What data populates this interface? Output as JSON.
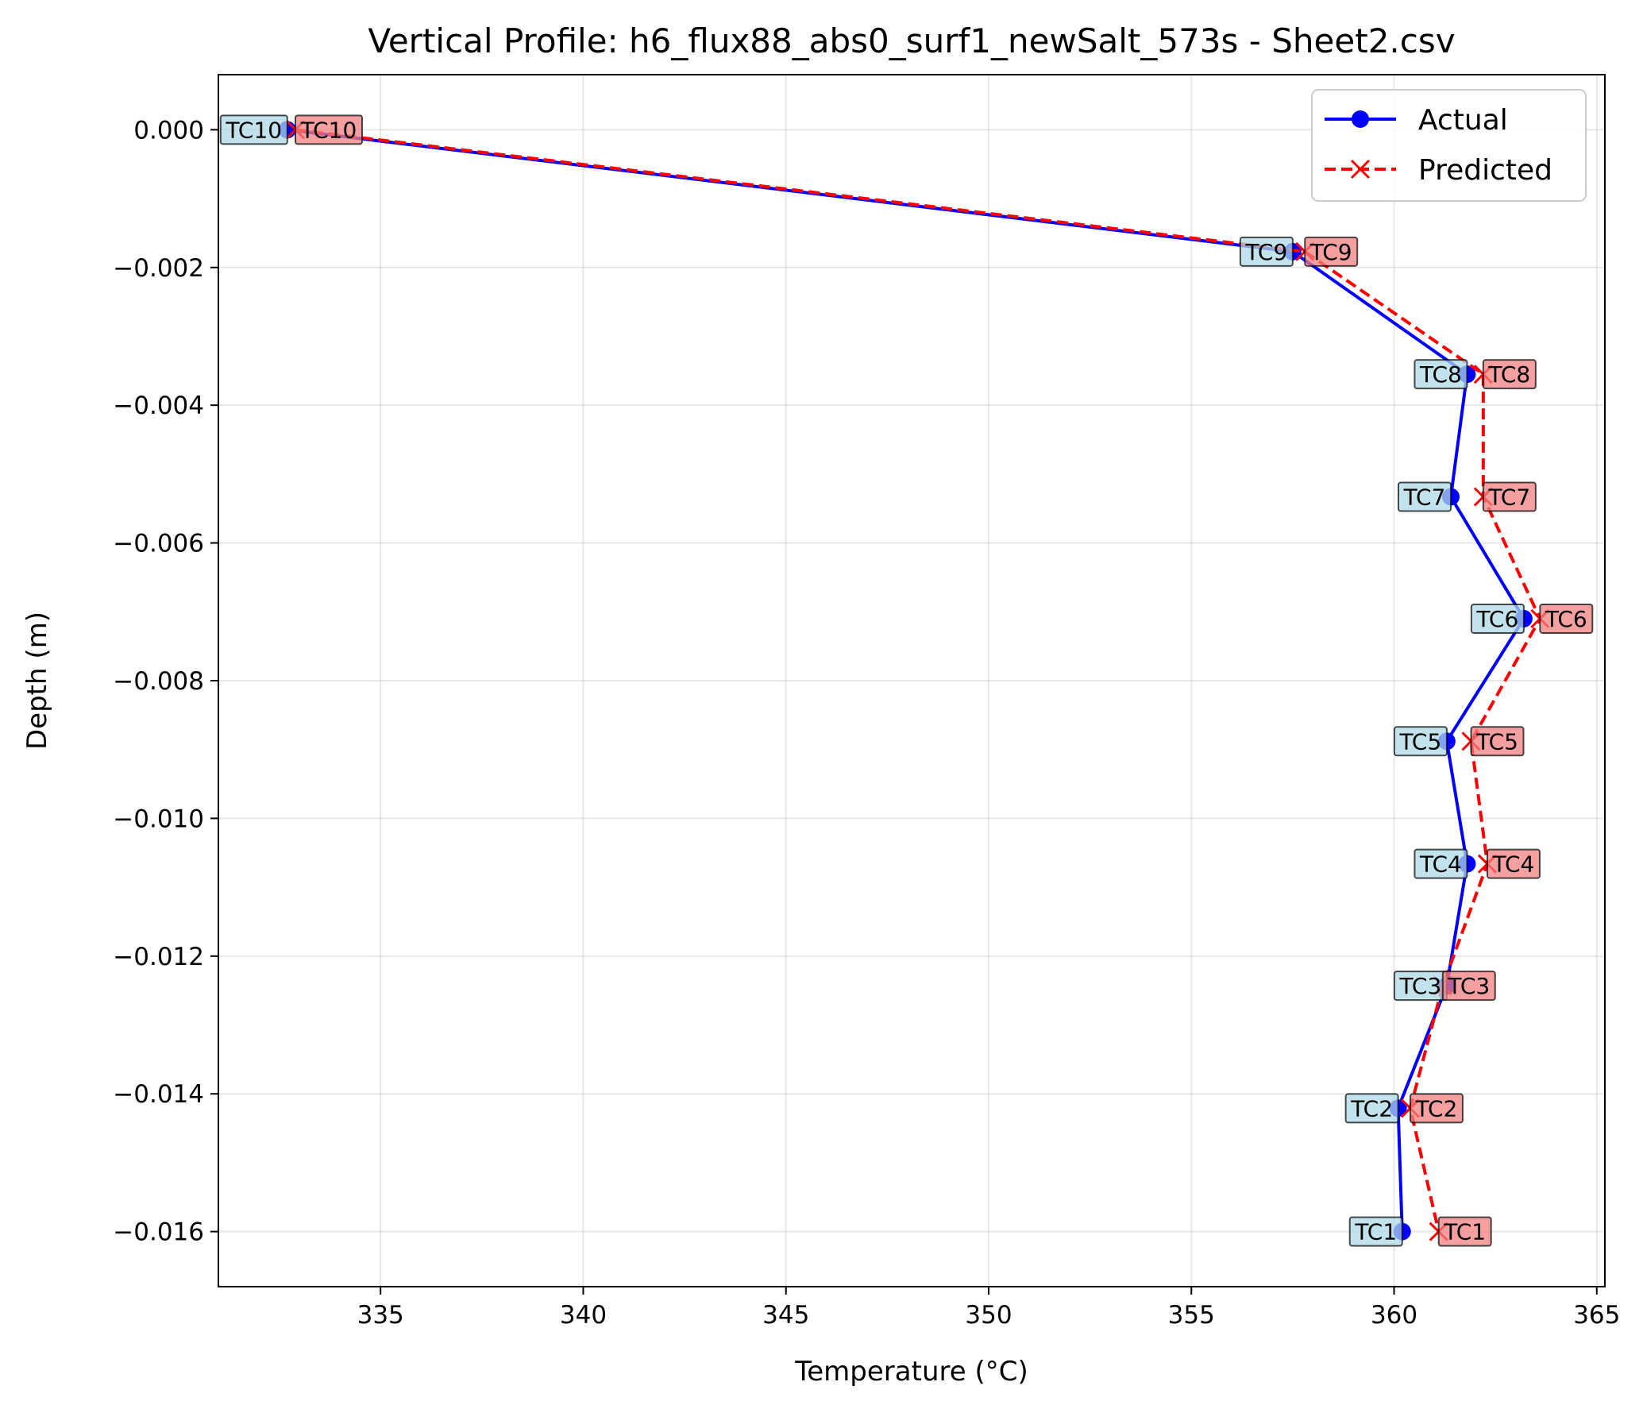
{
  "chart_data": {
    "type": "line",
    "title": "Vertical Profile: h6_flux88_abs0_surf1_newSalt_573s - Sheet2.csv",
    "xlabel": "Temperature (°C)",
    "ylabel": "Depth (m)",
    "xlim": [
      331,
      365.2
    ],
    "ylim": [
      -0.0168,
      0.0008
    ],
    "xticks": [
      335,
      340,
      345,
      350,
      355,
      360,
      365
    ],
    "xtick_labels": [
      "335",
      "340",
      "345",
      "350",
      "355",
      "360",
      "365"
    ],
    "yticks": [
      0.0,
      -0.002,
      -0.004,
      -0.006,
      -0.008,
      -0.01,
      -0.012,
      -0.014,
      -0.016
    ],
    "ytick_labels": [
      "0.000",
      "−0.002",
      "−0.004",
      "−0.006",
      "−0.008",
      "−0.010",
      "−0.012",
      "−0.014",
      "−0.016"
    ],
    "grid": true,
    "legend_position": "top-right",
    "depths": [
      0.0,
      -0.00177,
      -0.00355,
      -0.00533,
      -0.0071,
      -0.00888,
      -0.01066,
      -0.01243,
      -0.01421,
      -0.016
    ],
    "point_labels": [
      "TC10",
      "TC9",
      "TC8",
      "TC7",
      "TC6",
      "TC5",
      "TC4",
      "TC3",
      "TC2",
      "TC1"
    ],
    "series": [
      {
        "name": "Actual",
        "color": "#0000ff",
        "marker": "circle",
        "linestyle": "solid",
        "label_bg": "#add8e6",
        "values": [
          332.7,
          357.5,
          361.8,
          361.4,
          363.2,
          361.3,
          361.8,
          361.3,
          360.1,
          360.2
        ]
      },
      {
        "name": "Predicted",
        "color": "#ff0000",
        "marker": "x",
        "linestyle": "dashed",
        "label_bg": "#f08080",
        "values": [
          332.9,
          357.8,
          362.2,
          362.2,
          363.6,
          361.9,
          362.3,
          361.2,
          360.4,
          361.1
        ]
      }
    ]
  }
}
